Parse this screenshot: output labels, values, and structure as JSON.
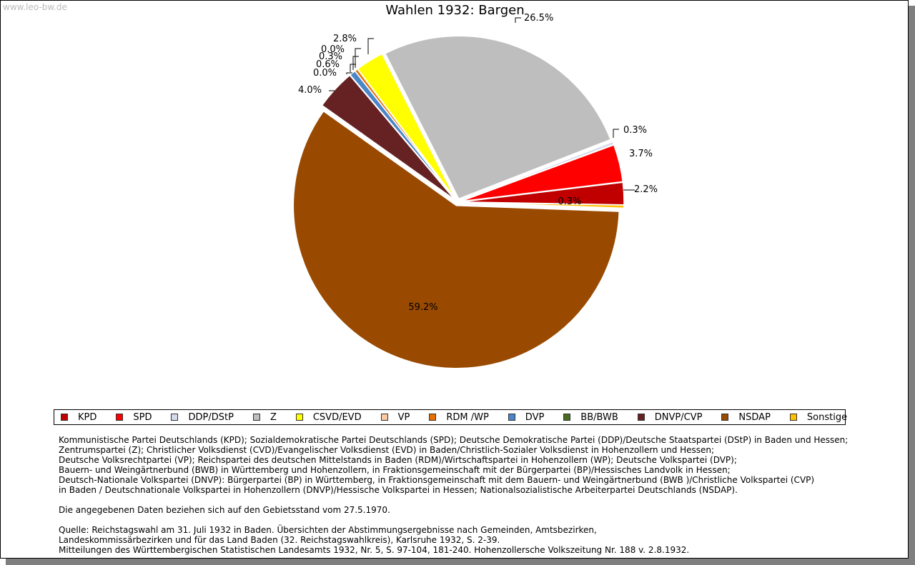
{
  "watermark": "www.leo-bw.de",
  "chart_data": {
    "type": "pie",
    "title": "Wahlen 1932: Bargen",
    "slices": [
      {
        "name": "KPD",
        "value": 2.2,
        "label": "2.2%",
        "color": "#c00000"
      },
      {
        "name": "SPD",
        "value": 3.7,
        "label": "3.7%",
        "color": "#ff0000"
      },
      {
        "name": "DDP/DStP",
        "value": 0.3,
        "label": "0.3%",
        "color": "#d4dcec"
      },
      {
        "name": "Z",
        "value": 26.5,
        "label": "26.5%",
        "color": "#bebebe"
      },
      {
        "name": "CSVD/EVD",
        "value": 2.8,
        "label": "2.8%",
        "color": "#ffff00"
      },
      {
        "name": "VP",
        "value": 0.0,
        "label": "0.0%",
        "color": "#fcc9a0"
      },
      {
        "name": "RDM /WP",
        "value": 0.3,
        "label": "0.3%",
        "color": "#e87000"
      },
      {
        "name": "DVP",
        "value": 0.6,
        "label": "0.6%",
        "color": "#4a86c8"
      },
      {
        "name": "BB/BWB",
        "value": 0.0,
        "label": "0.0%",
        "color": "#4a6c20"
      },
      {
        "name": "DNVP/CVP",
        "value": 4.0,
        "label": "4.0%",
        "color": "#662222"
      },
      {
        "name": "NSDAP",
        "value": 59.2,
        "label": "59.2%",
        "color": "#994a00"
      },
      {
        "name": "Sonstige",
        "value": 0.3,
        "label": "0.3%",
        "color": "#ffc000"
      }
    ]
  },
  "notes": [
    "Kommunistische Partei Deutschlands (KPD); Sozialdemokratische Partei Deutschlands (SPD); Deutsche Demokratische Partei (DDP)/Deutsche Staatspartei (DStP) in Baden und Hessen;",
    "Zentrumspartei (Z); Christlicher Volksdienst (CVD)/Evangelischer Volksdienst (EVD) in Baden/Christlich-Sozialer Volksdienst in Hohenzollern und Hessen;",
    "Deutsche Volksrechtpartei (VP); Reichspartei des deutschen Mittelstands in Baden (RDM)/Wirtschaftspartei in Hohenzollern (WP); Deutsche Volkspartei (DVP);",
    "Bauern- und Weingärtnerbund (BWB) in Württemberg und Hohenzollern, in Fraktionsgemeinschaft mit der Bürgerpartei (BP)/Hessisches Landvolk in Hessen;",
    "Deutsch-Nationale Volkspartei (DNVP): Bürgerpartei (BP) in Württemberg, in Fraktionsgemeinschaft mit dem Bauern- und Weingärtnerbund (BWB )/Christliche Volkspartei (CVP)",
    "in Baden / Deutschnationale Volkspartei in Hohenzollern (DNVP)/Hessische Volkspartei in Hessen; Nationalsozialistische Arbeiterpartei Deutschlands (NSDAP)."
  ],
  "note_date": "Die angegebenen Daten beziehen sich auf den Gebietsstand vom 27.5.1970.",
  "source": [
    "Quelle: Reichstagswahl am 31. Juli 1932 in Baden. Übersichten der Abstimmungsergebnisse nach Gemeinden, Amtsbezirken,",
    "Landeskommissärbezirken und für das Land Baden (32. Reichstagswahlkreis), Karlsruhe 1932, S. 2-39.",
    "Mitteilungen des Württembergischen Statistischen Landesamts 1932, Nr. 5, S. 97-104, 181-240. Hohenzollersche Volkszeitung Nr. 188 v. 2.8.1932."
  ]
}
